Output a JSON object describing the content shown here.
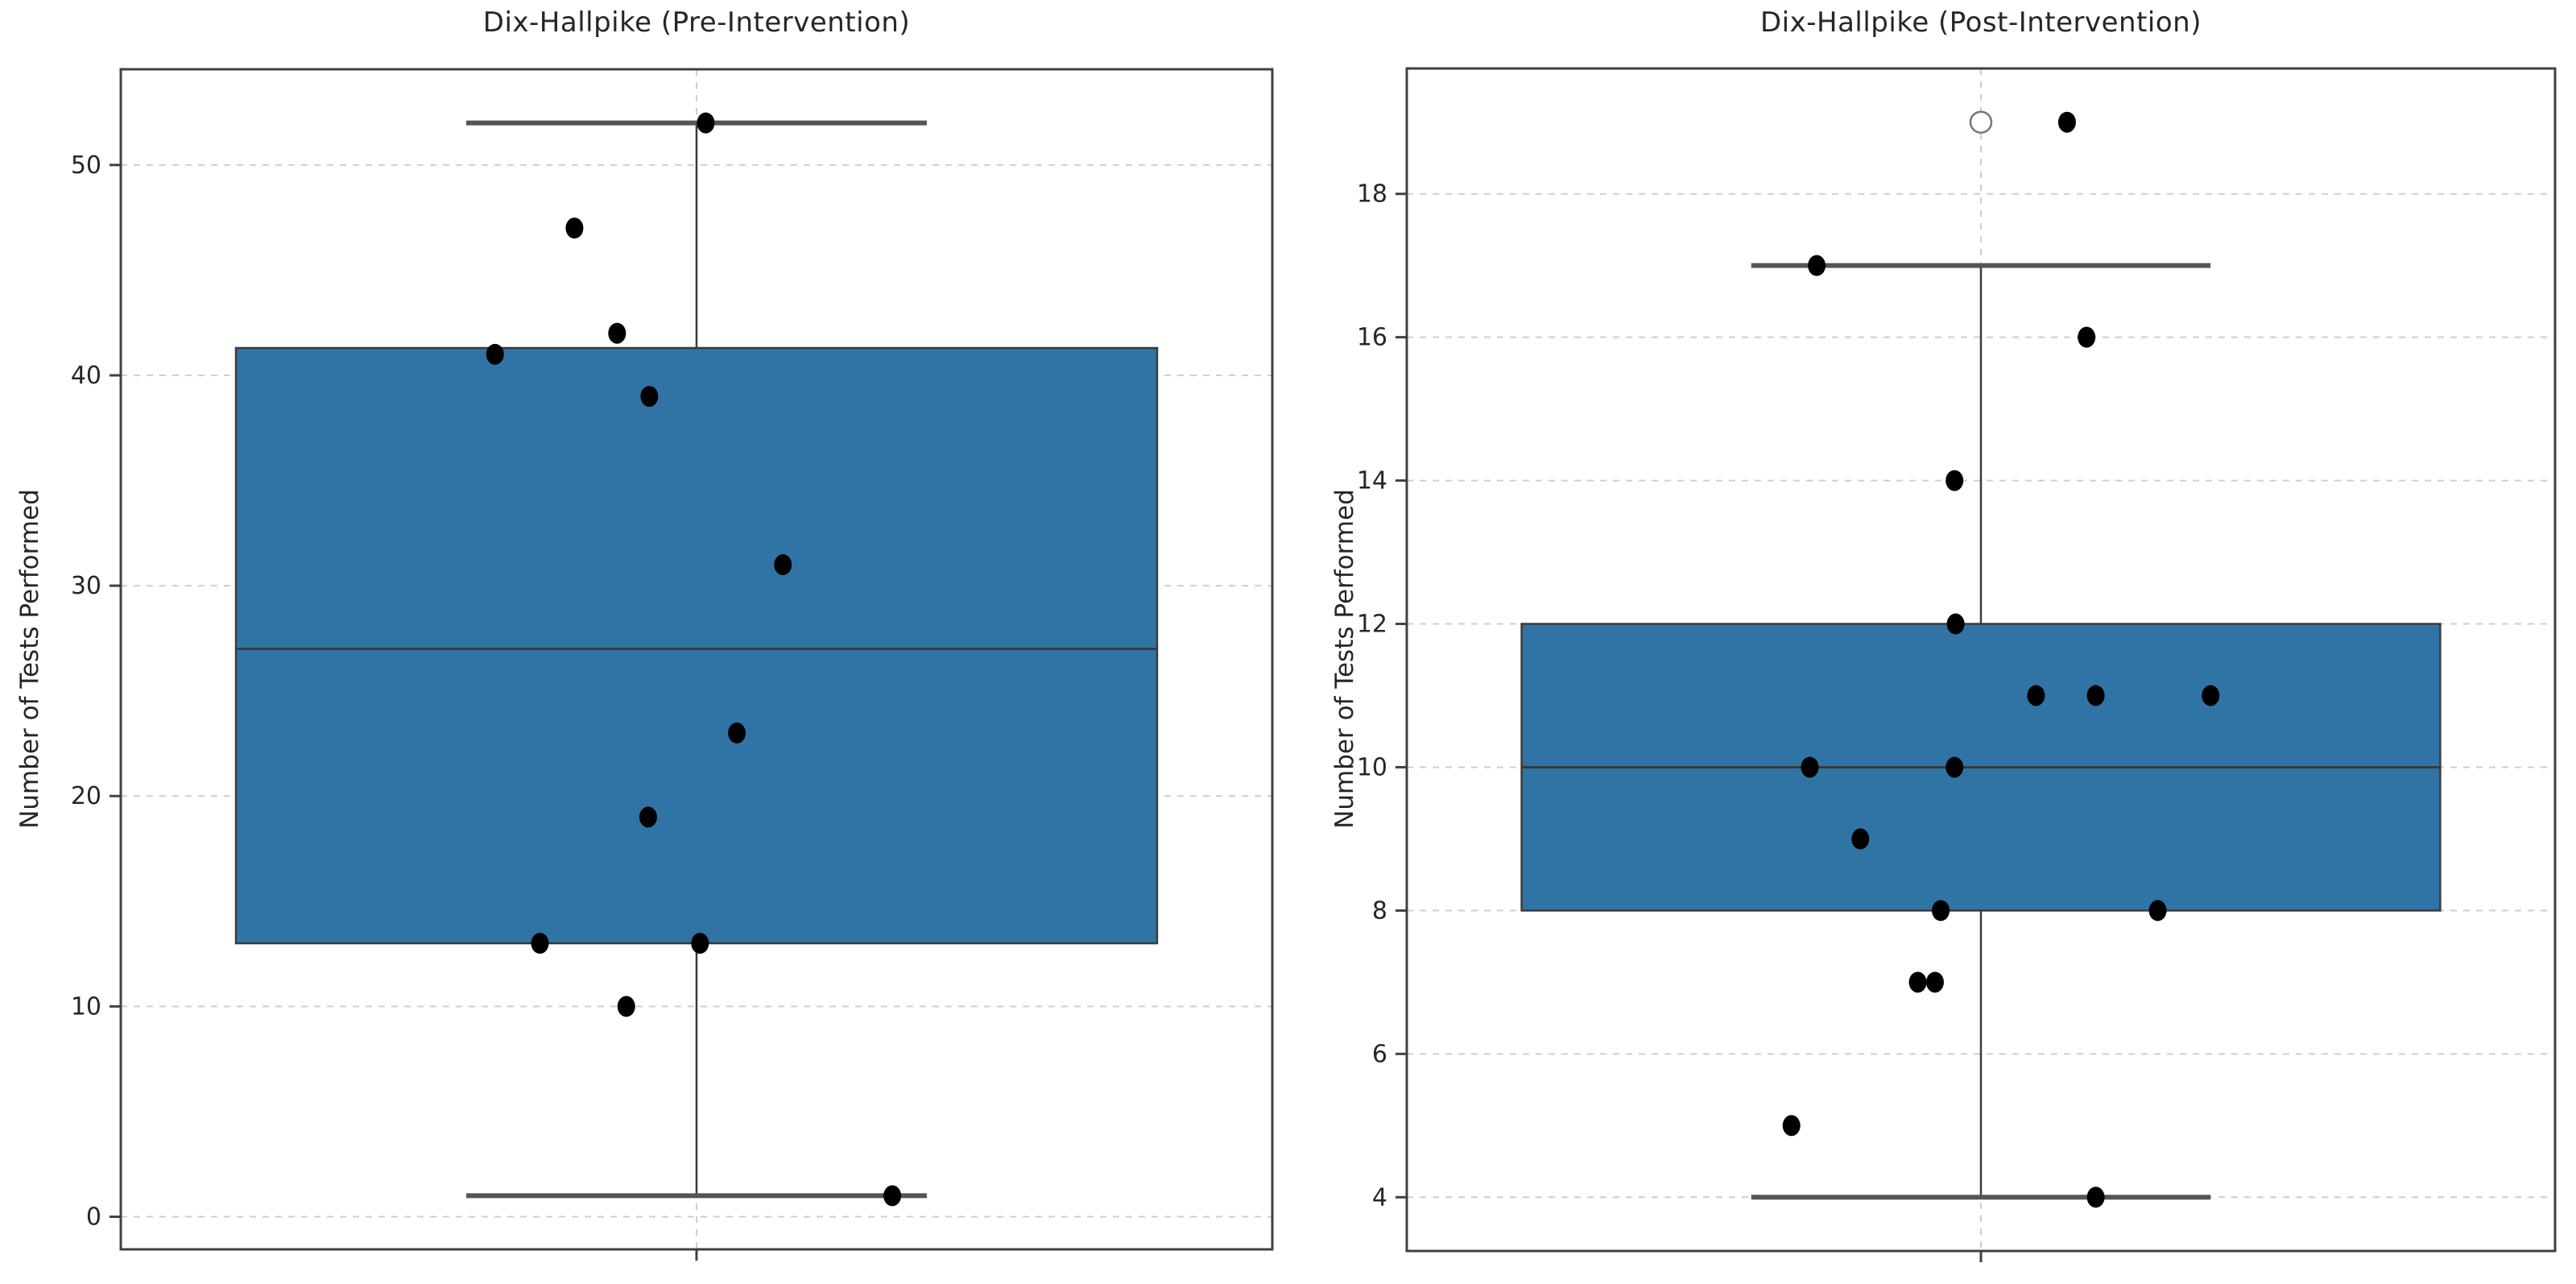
{
  "figure": {
    "background": "#ffffff",
    "ylabel": "Number of Tests Performed"
  },
  "style": {
    "box_fill": "#3074a6",
    "box_edge": "#3b3b3b",
    "median_color": "#3a3a3a",
    "whisker_color": "#3b3b3b",
    "cap_color": "#555555",
    "grid_color": "#c9c9c9",
    "frame_color": "#404040",
    "point_color": "#000000",
    "flier_edge": "#777777",
    "text_color": "#262626"
  },
  "chart_data": [
    {
      "type": "box",
      "title": "Dix-Hallpike (Pre-Intervention)",
      "ylabel": "Number of Tests Performed",
      "xlabel": "",
      "grid": true,
      "legend": false,
      "yticks": [
        0,
        10,
        20,
        30,
        40,
        50
      ],
      "ylim": [
        -1.55,
        54.55
      ],
      "box": {
        "whisker_low": 1,
        "q1": 13,
        "median": 27,
        "q3": 41.3,
        "whisker_high": 52
      },
      "points": [
        {
          "v": 52,
          "o": 0.008
        },
        {
          "v": 47,
          "o": -0.106
        },
        {
          "v": 42,
          "o": -0.069
        },
        {
          "v": 41,
          "o": -0.175
        },
        {
          "v": 39,
          "o": -0.041
        },
        {
          "v": 31,
          "o": 0.075
        },
        {
          "v": 23,
          "o": 0.035
        },
        {
          "v": 19,
          "o": -0.042
        },
        {
          "v": 13,
          "o": -0.136
        },
        {
          "v": 13,
          "o": 0.003
        },
        {
          "v": 10,
          "o": -0.061
        },
        {
          "v": 1,
          "o": 0.17
        }
      ],
      "fliers": []
    },
    {
      "type": "box",
      "title": "Dix-Hallpike (Post-Intervention)",
      "ylabel": "Number of Tests Performed",
      "xlabel": "",
      "grid": true,
      "legend": false,
      "yticks": [
        4,
        6,
        8,
        10,
        12,
        14,
        16,
        18
      ],
      "ylim": [
        3.25,
        19.75
      ],
      "box": {
        "whisker_low": 4,
        "q1": 8,
        "median": 10,
        "q3": 12,
        "whisker_high": 17
      },
      "points": [
        {
          "v": 19,
          "o": 0.075
        },
        {
          "v": 17,
          "o": -0.143
        },
        {
          "v": 16,
          "o": 0.092
        },
        {
          "v": 14,
          "o": -0.023
        },
        {
          "v": 12,
          "o": -0.022
        },
        {
          "v": 11,
          "o": 0.048
        },
        {
          "v": 11,
          "o": 0.1
        },
        {
          "v": 11,
          "o": 0.2
        },
        {
          "v": 10,
          "o": -0.149
        },
        {
          "v": 10,
          "o": -0.023
        },
        {
          "v": 9,
          "o": -0.105
        },
        {
          "v": 8,
          "o": -0.035
        },
        {
          "v": 8,
          "o": 0.154
        },
        {
          "v": 7,
          "o": -0.055
        },
        {
          "v": 7,
          "o": -0.04
        },
        {
          "v": 5,
          "o": -0.165
        },
        {
          "v": 4,
          "o": 0.1
        }
      ],
      "fliers": [
        {
          "v": 19,
          "o": 0
        }
      ]
    }
  ]
}
